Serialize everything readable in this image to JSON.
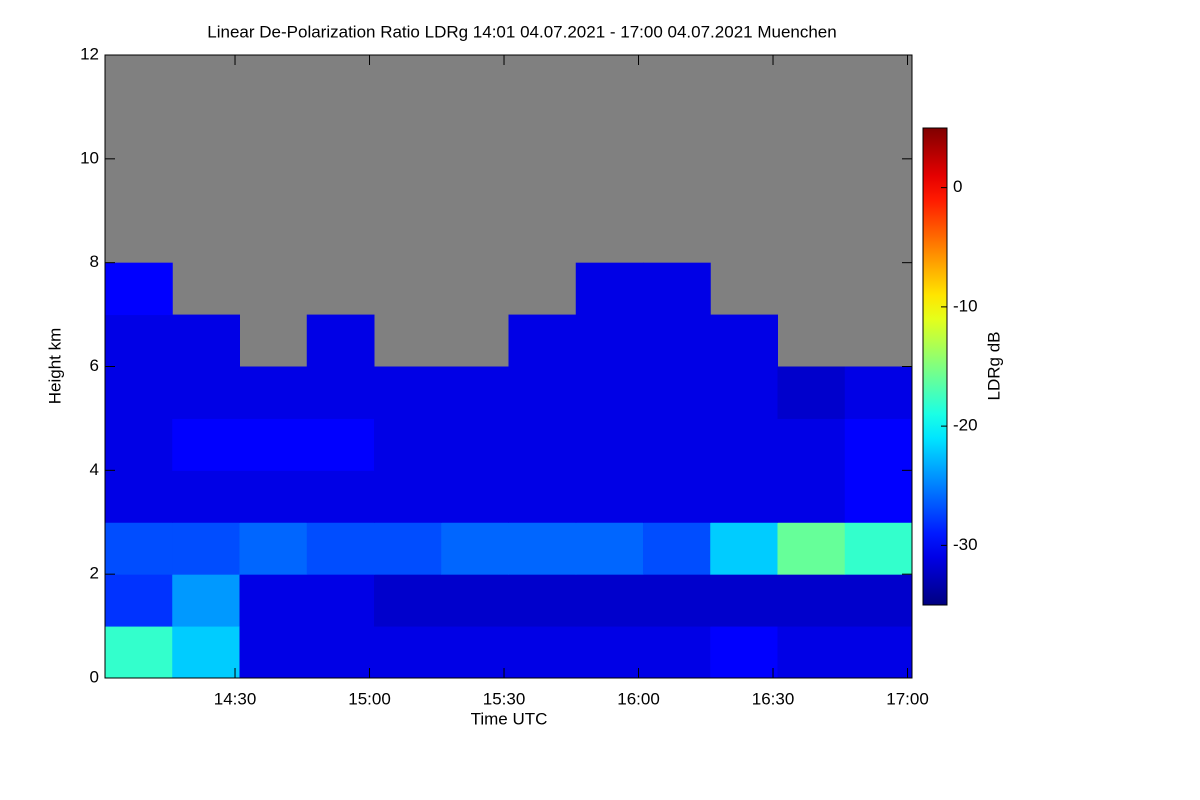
{
  "chart_data": {
    "type": "heatmap",
    "title": "Linear De-Polarization Ratio LDRg   14:01 04.07.2021 - 17:00 04.07.2021 Muenchen",
    "xlabel": "Time UTC",
    "ylabel": "Height km",
    "colorbar_label": "LDRg dB",
    "colormap": "jet",
    "missing_color": "#808080",
    "x": [
      841,
      856,
      871,
      886,
      901,
      916,
      931,
      946,
      961,
      976,
      991,
      1006,
      1021
    ],
    "y": [
      0,
      1,
      2,
      3,
      4,
      5,
      6,
      7,
      8,
      9,
      10,
      11,
      12
    ],
    "z": [
      [
        -18,
        -22,
        -31,
        -31,
        -31,
        -31,
        -31,
        -31,
        -31,
        -30,
        -31,
        -31
      ],
      [
        -28,
        -24,
        -31,
        -31,
        -32,
        -32,
        -32,
        -32,
        -32,
        -32,
        -32,
        -32
      ],
      [
        -27,
        -27,
        -26,
        -27,
        -27,
        -26,
        -26,
        -26,
        -27,
        -22,
        -16,
        -18
      ],
      [
        -31,
        -31,
        -31,
        -31,
        -31,
        -31,
        -31,
        -31,
        -31,
        -31,
        -31,
        -30
      ],
      [
        -31,
        -30,
        -30,
        -30,
        -31,
        -31,
        -31,
        -31,
        -31,
        -31,
        -31,
        -30
      ],
      [
        -31,
        -31,
        -31,
        -31,
        -31,
        -31,
        -31,
        -31,
        -31,
        -31,
        -32,
        -31
      ],
      [
        -31,
        -31,
        null,
        -31,
        null,
        null,
        -31,
        -31,
        -31,
        -31,
        null,
        null
      ],
      [
        -30,
        null,
        null,
        null,
        null,
        null,
        null,
        -31,
        -31,
        null,
        null,
        null
      ],
      [
        null,
        null,
        null,
        null,
        null,
        null,
        null,
        null,
        null,
        null,
        null,
        null
      ],
      [
        null,
        null,
        null,
        null,
        null,
        null,
        null,
        null,
        null,
        null,
        null,
        null
      ],
      [
        null,
        null,
        null,
        null,
        null,
        null,
        null,
        null,
        null,
        null,
        null,
        null
      ],
      [
        null,
        null,
        null,
        null,
        null,
        null,
        null,
        null,
        null,
        null,
        null,
        null
      ]
    ],
    "xlim": [
      841,
      1021
    ],
    "ylim": [
      0,
      12
    ],
    "clim": [
      -35,
      5
    ],
    "xticks": [
      {
        "value": 870,
        "label": "14:30"
      },
      {
        "value": 900,
        "label": "15:00"
      },
      {
        "value": 930,
        "label": "15:30"
      },
      {
        "value": 960,
        "label": "16:00"
      },
      {
        "value": 990,
        "label": "16:30"
      },
      {
        "value": 1020,
        "label": "17:00"
      }
    ],
    "yticks": [
      0,
      2,
      4,
      6,
      8,
      10,
      12
    ],
    "cticks": [
      -30,
      -20,
      -10,
      0
    ]
  }
}
